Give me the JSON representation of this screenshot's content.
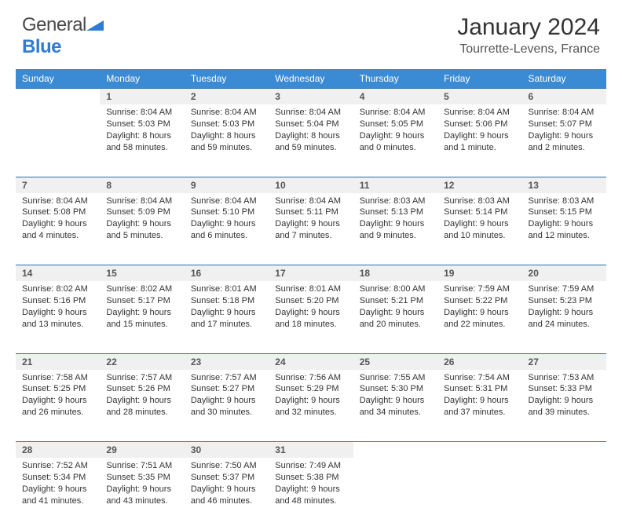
{
  "logo": {
    "text1": "General",
    "text2": "Blue"
  },
  "title": "January 2024",
  "location": "Tourrette-Levens, France",
  "colors": {
    "header_bg": "#3b8bd4",
    "header_text": "#ffffff",
    "rule": "#2e6da8",
    "daynum_bg": "#f0f0f0",
    "logo_gray": "#4a4a4a",
    "logo_blue": "#2e7cd6"
  },
  "weekdays": [
    "Sunday",
    "Monday",
    "Tuesday",
    "Wednesday",
    "Thursday",
    "Friday",
    "Saturday"
  ],
  "weeks": [
    [
      null,
      {
        "n": "1",
        "sr": "Sunrise: 8:04 AM",
        "ss": "Sunset: 5:03 PM",
        "d1": "Daylight: 8 hours",
        "d2": "and 58 minutes."
      },
      {
        "n": "2",
        "sr": "Sunrise: 8:04 AM",
        "ss": "Sunset: 5:03 PM",
        "d1": "Daylight: 8 hours",
        "d2": "and 59 minutes."
      },
      {
        "n": "3",
        "sr": "Sunrise: 8:04 AM",
        "ss": "Sunset: 5:04 PM",
        "d1": "Daylight: 8 hours",
        "d2": "and 59 minutes."
      },
      {
        "n": "4",
        "sr": "Sunrise: 8:04 AM",
        "ss": "Sunset: 5:05 PM",
        "d1": "Daylight: 9 hours",
        "d2": "and 0 minutes."
      },
      {
        "n": "5",
        "sr": "Sunrise: 8:04 AM",
        "ss": "Sunset: 5:06 PM",
        "d1": "Daylight: 9 hours",
        "d2": "and 1 minute."
      },
      {
        "n": "6",
        "sr": "Sunrise: 8:04 AM",
        "ss": "Sunset: 5:07 PM",
        "d1": "Daylight: 9 hours",
        "d2": "and 2 minutes."
      }
    ],
    [
      {
        "n": "7",
        "sr": "Sunrise: 8:04 AM",
        "ss": "Sunset: 5:08 PM",
        "d1": "Daylight: 9 hours",
        "d2": "and 4 minutes."
      },
      {
        "n": "8",
        "sr": "Sunrise: 8:04 AM",
        "ss": "Sunset: 5:09 PM",
        "d1": "Daylight: 9 hours",
        "d2": "and 5 minutes."
      },
      {
        "n": "9",
        "sr": "Sunrise: 8:04 AM",
        "ss": "Sunset: 5:10 PM",
        "d1": "Daylight: 9 hours",
        "d2": "and 6 minutes."
      },
      {
        "n": "10",
        "sr": "Sunrise: 8:04 AM",
        "ss": "Sunset: 5:11 PM",
        "d1": "Daylight: 9 hours",
        "d2": "and 7 minutes."
      },
      {
        "n": "11",
        "sr": "Sunrise: 8:03 AM",
        "ss": "Sunset: 5:13 PM",
        "d1": "Daylight: 9 hours",
        "d2": "and 9 minutes."
      },
      {
        "n": "12",
        "sr": "Sunrise: 8:03 AM",
        "ss": "Sunset: 5:14 PM",
        "d1": "Daylight: 9 hours",
        "d2": "and 10 minutes."
      },
      {
        "n": "13",
        "sr": "Sunrise: 8:03 AM",
        "ss": "Sunset: 5:15 PM",
        "d1": "Daylight: 9 hours",
        "d2": "and 12 minutes."
      }
    ],
    [
      {
        "n": "14",
        "sr": "Sunrise: 8:02 AM",
        "ss": "Sunset: 5:16 PM",
        "d1": "Daylight: 9 hours",
        "d2": "and 13 minutes."
      },
      {
        "n": "15",
        "sr": "Sunrise: 8:02 AM",
        "ss": "Sunset: 5:17 PM",
        "d1": "Daylight: 9 hours",
        "d2": "and 15 minutes."
      },
      {
        "n": "16",
        "sr": "Sunrise: 8:01 AM",
        "ss": "Sunset: 5:18 PM",
        "d1": "Daylight: 9 hours",
        "d2": "and 17 minutes."
      },
      {
        "n": "17",
        "sr": "Sunrise: 8:01 AM",
        "ss": "Sunset: 5:20 PM",
        "d1": "Daylight: 9 hours",
        "d2": "and 18 minutes."
      },
      {
        "n": "18",
        "sr": "Sunrise: 8:00 AM",
        "ss": "Sunset: 5:21 PM",
        "d1": "Daylight: 9 hours",
        "d2": "and 20 minutes."
      },
      {
        "n": "19",
        "sr": "Sunrise: 7:59 AM",
        "ss": "Sunset: 5:22 PM",
        "d1": "Daylight: 9 hours",
        "d2": "and 22 minutes."
      },
      {
        "n": "20",
        "sr": "Sunrise: 7:59 AM",
        "ss": "Sunset: 5:23 PM",
        "d1": "Daylight: 9 hours",
        "d2": "and 24 minutes."
      }
    ],
    [
      {
        "n": "21",
        "sr": "Sunrise: 7:58 AM",
        "ss": "Sunset: 5:25 PM",
        "d1": "Daylight: 9 hours",
        "d2": "and 26 minutes."
      },
      {
        "n": "22",
        "sr": "Sunrise: 7:57 AM",
        "ss": "Sunset: 5:26 PM",
        "d1": "Daylight: 9 hours",
        "d2": "and 28 minutes."
      },
      {
        "n": "23",
        "sr": "Sunrise: 7:57 AM",
        "ss": "Sunset: 5:27 PM",
        "d1": "Daylight: 9 hours",
        "d2": "and 30 minutes."
      },
      {
        "n": "24",
        "sr": "Sunrise: 7:56 AM",
        "ss": "Sunset: 5:29 PM",
        "d1": "Daylight: 9 hours",
        "d2": "and 32 minutes."
      },
      {
        "n": "25",
        "sr": "Sunrise: 7:55 AM",
        "ss": "Sunset: 5:30 PM",
        "d1": "Daylight: 9 hours",
        "d2": "and 34 minutes."
      },
      {
        "n": "26",
        "sr": "Sunrise: 7:54 AM",
        "ss": "Sunset: 5:31 PM",
        "d1": "Daylight: 9 hours",
        "d2": "and 37 minutes."
      },
      {
        "n": "27",
        "sr": "Sunrise: 7:53 AM",
        "ss": "Sunset: 5:33 PM",
        "d1": "Daylight: 9 hours",
        "d2": "and 39 minutes."
      }
    ],
    [
      {
        "n": "28",
        "sr": "Sunrise: 7:52 AM",
        "ss": "Sunset: 5:34 PM",
        "d1": "Daylight: 9 hours",
        "d2": "and 41 minutes."
      },
      {
        "n": "29",
        "sr": "Sunrise: 7:51 AM",
        "ss": "Sunset: 5:35 PM",
        "d1": "Daylight: 9 hours",
        "d2": "and 43 minutes."
      },
      {
        "n": "30",
        "sr": "Sunrise: 7:50 AM",
        "ss": "Sunset: 5:37 PM",
        "d1": "Daylight: 9 hours",
        "d2": "and 46 minutes."
      },
      {
        "n": "31",
        "sr": "Sunrise: 7:49 AM",
        "ss": "Sunset: 5:38 PM",
        "d1": "Daylight: 9 hours",
        "d2": "and 48 minutes."
      },
      null,
      null,
      null
    ]
  ]
}
